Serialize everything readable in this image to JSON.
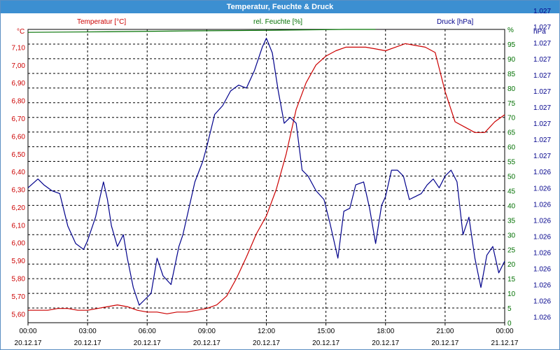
{
  "window": {
    "title": "Temperatur, Feuchte & Druck"
  },
  "colors": {
    "temperature": "#cc0000",
    "humidity": "#007000",
    "pressure": "#00008b",
    "grid": "#000000"
  },
  "chart_data": {
    "type": "line",
    "title": "Temperatur, Feuchte & Druck",
    "grid": true,
    "legend": "top",
    "x_ticks": [
      {
        "time": "00:00",
        "date": "20.12.17"
      },
      {
        "time": "03:00",
        "date": "20.12.17"
      },
      {
        "time": "06:00",
        "date": "20.12.17"
      },
      {
        "time": "09:00",
        "date": "20.12.17"
      },
      {
        "time": "12:00",
        "date": "20.12.17"
      },
      {
        "time": "15:00",
        "date": "20.12.17"
      },
      {
        "time": "18:00",
        "date": "20.12.17"
      },
      {
        "time": "21:00",
        "date": "20.12.17"
      },
      {
        "time": "00:00",
        "date": "21.12.17"
      }
    ],
    "xlim_hours": [
      0,
      24
    ],
    "axes": {
      "left": {
        "unit": "°C",
        "ylim": [
          5.55,
          7.2
        ],
        "ticks": [
          "5,60",
          "5,70",
          "5,80",
          "5,90",
          "6,00",
          "6,10",
          "6,20",
          "6,30",
          "6,40",
          "6,50",
          "6,60",
          "6,70",
          "6,80",
          "6,90",
          "7,00",
          "7,10"
        ]
      },
      "right1": {
        "unit": "%",
        "ylim": [
          0,
          100
        ],
        "ticks": [
          "0",
          "5",
          "10",
          "15",
          "20",
          "25",
          "30",
          "35",
          "40",
          "45",
          "50",
          "55",
          "60",
          "65",
          "70",
          "75",
          "80",
          "85",
          "90",
          "95",
          "%"
        ]
      },
      "right2": {
        "unit": "hPa",
        "ticks": [
          "1.026",
          "1.026",
          "1.026",
          "1.026",
          "1.026",
          "1.026",
          "1.026",
          "1.026",
          "1.026",
          "1.026",
          "1.027",
          "1.027",
          "1.027",
          "1.027",
          "1.027",
          "1.027",
          "1.027",
          "1.027",
          "1.027",
          "1.027"
        ]
      }
    },
    "series": [
      {
        "name": "Temperatur [°C]",
        "axis": "left",
        "color": "#cc0000",
        "x": [
          0,
          0.5,
          1,
          1.5,
          2,
          2.5,
          3,
          3.5,
          4,
          4.5,
          5,
          5.5,
          6,
          6.5,
          7,
          7.5,
          8,
          8.5,
          9,
          9.5,
          10,
          10.5,
          11,
          11.5,
          12,
          12.5,
          13,
          13.5,
          14,
          14.5,
          15,
          15.5,
          16,
          16.5,
          17,
          17.5,
          18,
          18.5,
          19,
          19.5,
          20,
          20.5,
          21,
          21.5,
          22,
          22.5,
          23,
          23.5,
          24
        ],
        "y": [
          5.62,
          5.62,
          5.62,
          5.63,
          5.63,
          5.62,
          5.62,
          5.63,
          5.64,
          5.65,
          5.64,
          5.62,
          5.61,
          5.61,
          5.6,
          5.61,
          5.61,
          5.62,
          5.63,
          5.65,
          5.7,
          5.8,
          5.92,
          6.05,
          6.15,
          6.3,
          6.5,
          6.75,
          6.9,
          7.0,
          7.05,
          7.08,
          7.1,
          7.1,
          7.1,
          7.09,
          7.08,
          7.1,
          7.12,
          7.11,
          7.1,
          7.07,
          6.85,
          6.68,
          6.65,
          6.62,
          6.62,
          6.68,
          6.72
        ]
      },
      {
        "name": "rel. Feuchte [%]",
        "axis": "right1",
        "color": "#007000",
        "x": [
          0,
          4,
          8,
          12,
          16,
          17.5
        ],
        "y": [
          99.0,
          99.2,
          99.5,
          99.7,
          100.0,
          100.0
        ]
      },
      {
        "name": "Druck [hPa]",
        "axis": "right1",
        "color": "#00008b",
        "x": [
          0,
          0.5,
          0.8,
          1.2,
          1.6,
          2.0,
          2.4,
          2.8,
          3.0,
          3.4,
          3.8,
          4.0,
          4.2,
          4.5,
          4.8,
          5.0,
          5.3,
          5.6,
          5.9,
          6.2,
          6.5,
          6.8,
          7.2,
          7.6,
          7.8,
          8.0,
          8.4,
          8.8,
          9.0,
          9.4,
          9.8,
          10.2,
          10.6,
          11,
          11.4,
          11.8,
          12.0,
          12.3,
          12.6,
          12.9,
          13.2,
          13.5,
          13.8,
          14.1,
          14.5,
          14.9,
          15.2,
          15.6,
          15.9,
          16.2,
          16.5,
          16.9,
          17.2,
          17.5,
          17.8,
          18.0,
          18.3,
          18.6,
          18.9,
          19.2,
          19.5,
          19.8,
          20.1,
          20.4,
          20.7,
          21.0,
          21.3,
          21.6,
          21.9,
          22.2,
          22.5,
          22.8,
          23.1,
          23.4,
          23.7,
          24.0
        ],
        "y": [
          46,
          49,
          47,
          45,
          44,
          33,
          27,
          25,
          28,
          36,
          48,
          42,
          33,
          26,
          30,
          22,
          12,
          6,
          8,
          10,
          22,
          16,
          13,
          26,
          30,
          36,
          48,
          55,
          60,
          71,
          74,
          79,
          81,
          80,
          86,
          94,
          97,
          92,
          79,
          68,
          70,
          68,
          52,
          50,
          45,
          42,
          34,
          22,
          38,
          39,
          47,
          48,
          39,
          27,
          40,
          43,
          52,
          52,
          50,
          42,
          43,
          44,
          47,
          49,
          46,
          50,
          52,
          48,
          30,
          36,
          22,
          12,
          23,
          26,
          17,
          21
        ]
      }
    ]
  }
}
